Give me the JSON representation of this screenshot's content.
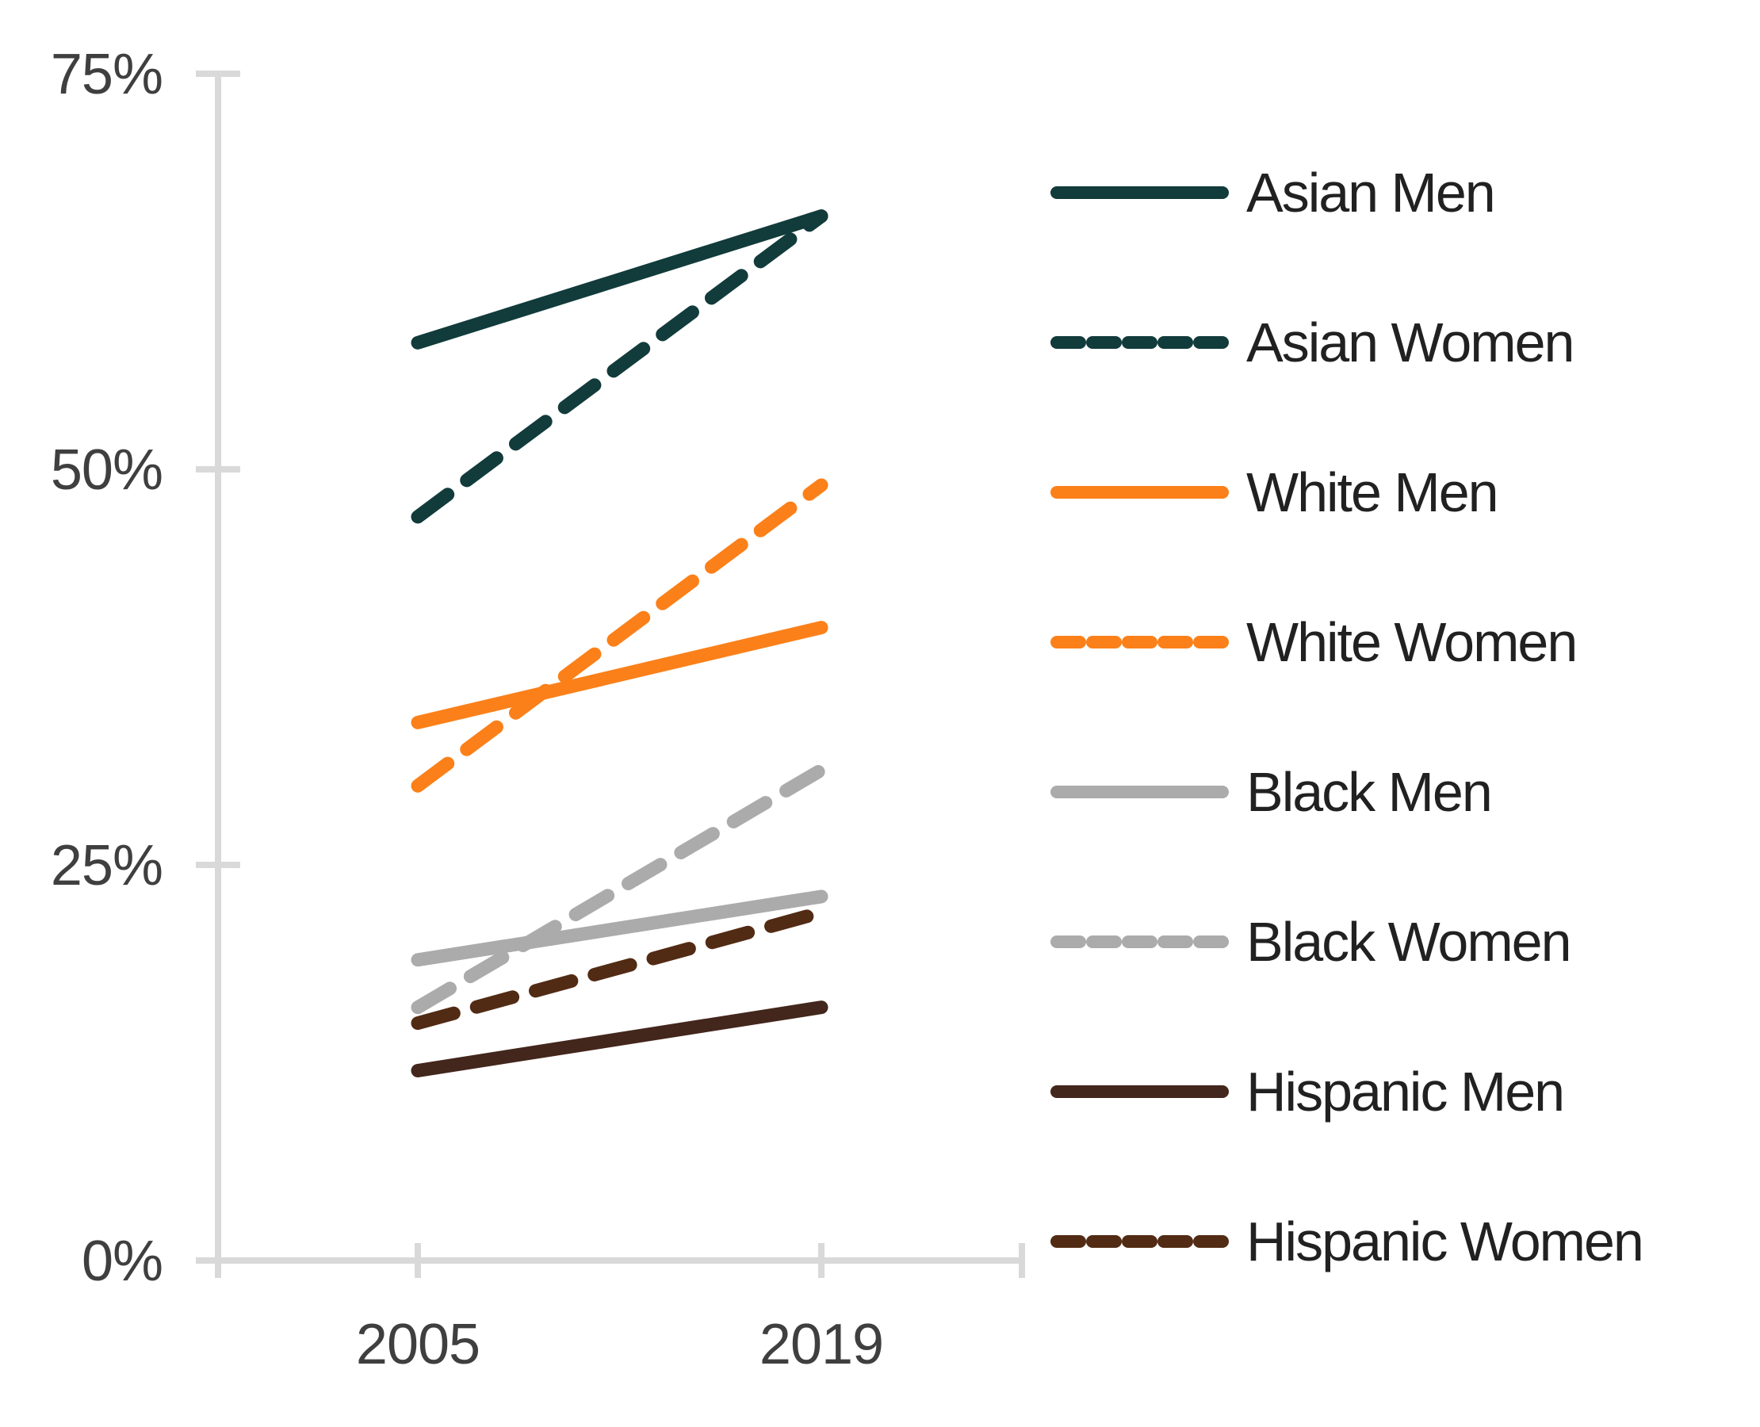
{
  "chart_data": {
    "type": "line",
    "title": "",
    "xlabel": "",
    "ylabel": "",
    "x": [
      2005,
      2019
    ],
    "x_tick_labels": [
      "2005",
      "2019"
    ],
    "y_ticks": [
      {
        "label": "75%",
        "value": 75
      },
      {
        "label": "50%",
        "value": 50
      },
      {
        "label": "25%",
        "value": 25
      },
      {
        "label": "0%",
        "value": 0
      }
    ],
    "ylim": [
      0,
      75
    ],
    "grid": false,
    "legend_position": "right",
    "axis_color": "#D9D9D9",
    "tick_label_color": "#3F3F3F",
    "series": [
      {
        "name": "Asian Men",
        "color": "#123B3B",
        "dash": false,
        "values": [
          58,
          66
        ]
      },
      {
        "name": "Asian Women",
        "color": "#123B3B",
        "dash": true,
        "values": [
          47,
          66
        ]
      },
      {
        "name": "White Men",
        "color": "#FB8019",
        "dash": false,
        "values": [
          34,
          40
        ]
      },
      {
        "name": "White Women",
        "color": "#FB8019",
        "dash": true,
        "values": [
          30,
          49
        ]
      },
      {
        "name": "Black Men",
        "color": "#ABABAB",
        "dash": false,
        "values": [
          19,
          23
        ]
      },
      {
        "name": "Black Women",
        "color": "#ABABAB",
        "dash": true,
        "values": [
          16,
          31
        ]
      },
      {
        "name": "Hispanic Men",
        "color": "#43261C",
        "dash": false,
        "values": [
          12,
          16
        ]
      },
      {
        "name": "Hispanic Women",
        "color": "#522B14",
        "dash": true,
        "values": [
          15,
          22
        ]
      }
    ]
  }
}
